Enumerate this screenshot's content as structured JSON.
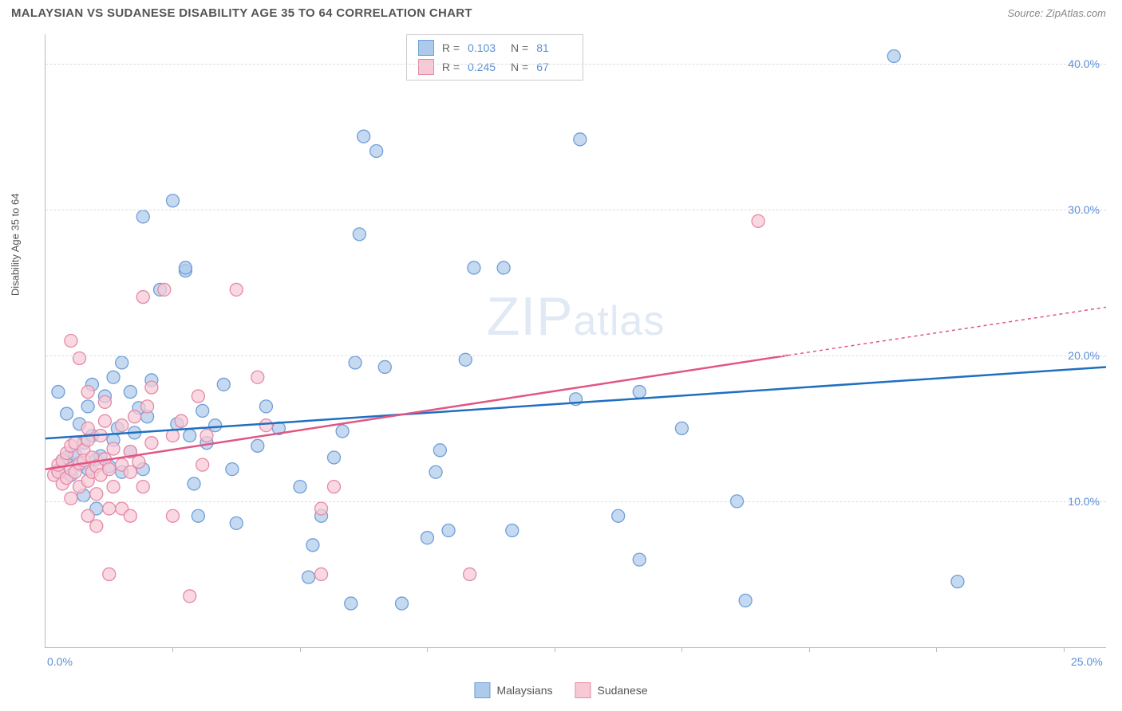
{
  "header": {
    "title": "MALAYSIAN VS SUDANESE DISABILITY AGE 35 TO 64 CORRELATION CHART",
    "source": "Source: ZipAtlas.com"
  },
  "y_axis_label": "Disability Age 35 to 64",
  "watermark": {
    "main": "ZIP",
    "sub": "atlas"
  },
  "chart": {
    "type": "scatter",
    "background_color": "#ffffff",
    "grid_color": "#dddddd",
    "axis_color": "#bbbbbb",
    "xlim": [
      0,
      25
    ],
    "ylim": [
      0,
      42
    ],
    "x_tick_marks": [
      3,
      6,
      9,
      12,
      15,
      18,
      21,
      24
    ],
    "x_labels": [
      {
        "text": "0.0%",
        "x": 0
      },
      {
        "text": "25.0%",
        "x": 25
      }
    ],
    "y_gridlines": [
      {
        "text": "10.0%",
        "y": 10
      },
      {
        "text": "20.0%",
        "y": 20
      },
      {
        "text": "30.0%",
        "y": 30
      },
      {
        "text": "40.0%",
        "y": 40
      }
    ],
    "tick_label_color": "#5b8fd6",
    "tick_label_fontsize": 14,
    "series": [
      {
        "name": "Malaysians",
        "marker_fill": "#aecaea",
        "marker_stroke": "#6f9fd8",
        "marker_radius": 8,
        "line_color": "#1f6fc1",
        "line_width": 2.5,
        "trend": {
          "x1": 0,
          "y1": 14.3,
          "x2": 25,
          "y2": 19.2
        },
        "stats": {
          "R": "0.103",
          "N": "81"
        },
        "points": [
          [
            0.3,
            12.1
          ],
          [
            0.4,
            12.8
          ],
          [
            0.5,
            13.0
          ],
          [
            0.6,
            11.8
          ],
          [
            0.7,
            13.2
          ],
          [
            0.8,
            12.5
          ],
          [
            0.9,
            14.0
          ],
          [
            1.0,
            12.2
          ],
          [
            1.1,
            14.5
          ],
          [
            1.2,
            12.9
          ],
          [
            0.5,
            16.0
          ],
          [
            0.8,
            15.3
          ],
          [
            1.0,
            16.5
          ],
          [
            1.3,
            13.1
          ],
          [
            1.5,
            12.4
          ],
          [
            0.3,
            17.5
          ],
          [
            0.9,
            10.4
          ],
          [
            1.2,
            9.5
          ],
          [
            1.6,
            14.2
          ],
          [
            1.8,
            12.0
          ],
          [
            2.0,
            13.4
          ],
          [
            2.1,
            14.7
          ],
          [
            2.3,
            12.2
          ],
          [
            2.4,
            15.8
          ],
          [
            1.1,
            18.0
          ],
          [
            1.4,
            17.2
          ],
          [
            1.6,
            18.5
          ],
          [
            2.0,
            17.5
          ],
          [
            2.2,
            16.4
          ],
          [
            1.8,
            19.5
          ],
          [
            2.5,
            18.3
          ],
          [
            1.7,
            15.0
          ],
          [
            2.3,
            29.5
          ],
          [
            2.7,
            24.5
          ],
          [
            3.0,
            30.6
          ],
          [
            3.1,
            15.3
          ],
          [
            3.3,
            25.8
          ],
          [
            3.3,
            26.0
          ],
          [
            3.4,
            14.5
          ],
          [
            3.5,
            11.2
          ],
          [
            3.6,
            9.0
          ],
          [
            3.7,
            16.2
          ],
          [
            3.8,
            14.0
          ],
          [
            4.0,
            15.2
          ],
          [
            4.2,
            18.0
          ],
          [
            4.4,
            12.2
          ],
          [
            4.5,
            8.5
          ],
          [
            5.0,
            13.8
          ],
          [
            5.2,
            16.5
          ],
          [
            5.5,
            15.0
          ],
          [
            6.0,
            11.0
          ],
          [
            6.2,
            4.8
          ],
          [
            6.3,
            7.0
          ],
          [
            6.5,
            9.0
          ],
          [
            6.8,
            13.0
          ],
          [
            7.0,
            14.8
          ],
          [
            7.2,
            3.0
          ],
          [
            7.3,
            19.5
          ],
          [
            7.4,
            28.3
          ],
          [
            7.5,
            35.0
          ],
          [
            7.8,
            34.0
          ],
          [
            8.0,
            19.2
          ],
          [
            8.4,
            3.0
          ],
          [
            9.0,
            7.5
          ],
          [
            9.2,
            12.0
          ],
          [
            9.3,
            13.5
          ],
          [
            9.5,
            8.0
          ],
          [
            9.9,
            19.7
          ],
          [
            10.1,
            26.0
          ],
          [
            10.8,
            26.0
          ],
          [
            11.0,
            8.0
          ],
          [
            12.5,
            17.0
          ],
          [
            12.6,
            34.8
          ],
          [
            13.5,
            9.0
          ],
          [
            14.0,
            17.5
          ],
          [
            14.0,
            6.0
          ],
          [
            15.0,
            15.0
          ],
          [
            16.3,
            10.0
          ],
          [
            16.5,
            3.2
          ],
          [
            20.0,
            40.5
          ],
          [
            21.5,
            4.5
          ]
        ]
      },
      {
        "name": "Sudanese",
        "marker_fill": "#f6c9d5",
        "marker_stroke": "#e48aa6",
        "marker_radius": 8,
        "line_color": "#e25583",
        "line_width": 2.5,
        "trend": {
          "x1": 0,
          "y1": 12.2,
          "x2": 17.5,
          "y2": 20.0
        },
        "trend_extend": {
          "x1": 17.5,
          "y1": 20.0,
          "x2": 25,
          "y2": 23.3
        },
        "stats": {
          "R": "0.245",
          "N": "67"
        },
        "points": [
          [
            0.2,
            11.8
          ],
          [
            0.3,
            12.0
          ],
          [
            0.3,
            12.5
          ],
          [
            0.4,
            11.2
          ],
          [
            0.4,
            12.8
          ],
          [
            0.5,
            13.3
          ],
          [
            0.5,
            11.6
          ],
          [
            0.6,
            12.2
          ],
          [
            0.6,
            13.8
          ],
          [
            0.6,
            10.2
          ],
          [
            0.7,
            12.0
          ],
          [
            0.7,
            14.0
          ],
          [
            0.8,
            12.6
          ],
          [
            0.8,
            11.0
          ],
          [
            0.9,
            13.5
          ],
          [
            0.9,
            12.8
          ],
          [
            1.0,
            11.4
          ],
          [
            1.0,
            14.2
          ],
          [
            1.0,
            15.0
          ],
          [
            1.1,
            12.0
          ],
          [
            1.1,
            13.0
          ],
          [
            1.2,
            12.4
          ],
          [
            1.2,
            10.5
          ],
          [
            1.3,
            14.5
          ],
          [
            1.3,
            11.8
          ],
          [
            1.4,
            12.9
          ],
          [
            1.4,
            15.5
          ],
          [
            1.5,
            12.2
          ],
          [
            1.5,
            9.5
          ],
          [
            1.6,
            11.0
          ],
          [
            1.6,
            13.6
          ],
          [
            1.8,
            12.5
          ],
          [
            1.8,
            15.2
          ],
          [
            2.0,
            12.0
          ],
          [
            2.0,
            13.4
          ],
          [
            2.1,
            15.8
          ],
          [
            2.2,
            12.7
          ],
          [
            2.3,
            11.0
          ],
          [
            2.4,
            16.5
          ],
          [
            2.5,
            14.0
          ],
          [
            0.6,
            21.0
          ],
          [
            0.8,
            19.8
          ],
          [
            1.0,
            17.5
          ],
          [
            1.0,
            9.0
          ],
          [
            1.2,
            8.3
          ],
          [
            1.4,
            16.8
          ],
          [
            1.5,
            5.0
          ],
          [
            1.8,
            9.5
          ],
          [
            2.0,
            9.0
          ],
          [
            2.3,
            24.0
          ],
          [
            2.5,
            17.8
          ],
          [
            2.8,
            24.5
          ],
          [
            3.0,
            14.5
          ],
          [
            3.0,
            9.0
          ],
          [
            3.2,
            15.5
          ],
          [
            3.4,
            3.5
          ],
          [
            3.6,
            17.2
          ],
          [
            3.7,
            12.5
          ],
          [
            3.8,
            14.5
          ],
          [
            4.5,
            24.5
          ],
          [
            5.0,
            18.5
          ],
          [
            5.2,
            15.2
          ],
          [
            6.5,
            5.0
          ],
          [
            6.5,
            9.5
          ],
          [
            6.8,
            11.0
          ],
          [
            10.0,
            5.0
          ],
          [
            16.8,
            29.2
          ]
        ]
      }
    ]
  },
  "legend": {
    "items": [
      {
        "label": "Malaysians",
        "fill": "#aecaea",
        "stroke": "#6f9fd8"
      },
      {
        "label": "Sudanese",
        "fill": "#f6c9d5",
        "stroke": "#e48aa6"
      }
    ]
  },
  "stats_box": {
    "rows": [
      {
        "fill": "#aecaea",
        "stroke": "#6f9fd8",
        "R": "0.103",
        "N": "81"
      },
      {
        "fill": "#f6c9d5",
        "stroke": "#e48aa6",
        "R": "0.245",
        "N": "67"
      }
    ],
    "labels": {
      "R": "R  =",
      "N": "N  ="
    }
  }
}
